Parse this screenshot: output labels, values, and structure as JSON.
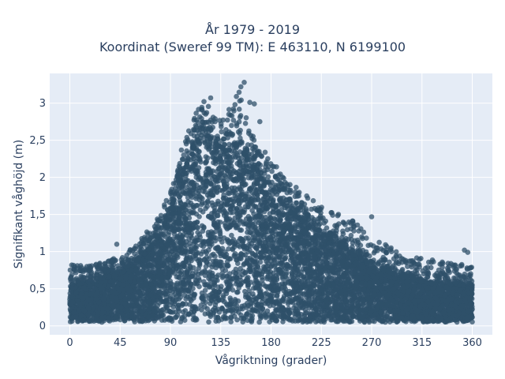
{
  "chart_data": {
    "type": "scatter",
    "title_line1": "År 1979 - 2019",
    "title_line2": "Koordinat (Sweref 99 TM): E 463110, N 6199100",
    "xlabel": "Vågriktning (grader)",
    "ylabel": "Signifikant våghöjd (m)",
    "xlim": [
      -18,
      378
    ],
    "ylim": [
      -0.12,
      3.4
    ],
    "x_ticks": [
      0,
      45,
      90,
      135,
      180,
      225,
      270,
      315,
      360
    ],
    "x_tick_labels": [
      "0",
      "45",
      "90",
      "135",
      "180",
      "225",
      "270",
      "315",
      "360"
    ],
    "y_ticks": [
      0,
      0.5,
      1,
      1.5,
      2,
      2.5,
      3
    ],
    "y_tick_labels": [
      "0",
      "0,5",
      "1",
      "1,5",
      "2",
      "2,5",
      "3"
    ],
    "grid": true,
    "legend": "none",
    "marker_color": "#2f5069",
    "background_color": "#e5ecf6",
    "envelope": {
      "direction": [
        0,
        20,
        45,
        60,
        75,
        90,
        100,
        110,
        120,
        130,
        140,
        150,
        160,
        170,
        180,
        200,
        225,
        250,
        270,
        300,
        330,
        360
      ],
      "upper_bulk_height": [
        0.55,
        0.6,
        0.7,
        0.85,
        1.1,
        1.55,
        2.0,
        2.4,
        2.6,
        2.45,
        2.35,
        2.4,
        2.25,
        2.0,
        1.8,
        1.5,
        1.25,
        1.0,
        0.8,
        0.65,
        0.55,
        0.55
      ],
      "max_height": [
        0.82,
        0.85,
        0.92,
        1.1,
        1.4,
        1.8,
        2.4,
        2.8,
        3.05,
        2.9,
        2.8,
        3.28,
        2.7,
        2.45,
        2.25,
        1.9,
        1.6,
        1.45,
        1.2,
        0.95,
        0.88,
        0.82
      ]
    },
    "outliers": [
      {
        "x": 120,
        "y": 3.02
      },
      {
        "x": 126,
        "y": 3.07
      },
      {
        "x": 149,
        "y": 3.09
      },
      {
        "x": 153,
        "y": 3.22
      },
      {
        "x": 156,
        "y": 3.28
      },
      {
        "x": 152,
        "y": 3.03
      },
      {
        "x": 161,
        "y": 3.01
      },
      {
        "x": 165,
        "y": 2.99
      },
      {
        "x": 145,
        "y": 2.83
      },
      {
        "x": 170,
        "y": 2.75
      },
      {
        "x": 42,
        "y": 1.1
      },
      {
        "x": 270,
        "y": 1.47
      },
      {
        "x": 356,
        "y": 0.99
      },
      {
        "x": 353,
        "y": 1.02
      }
    ]
  }
}
